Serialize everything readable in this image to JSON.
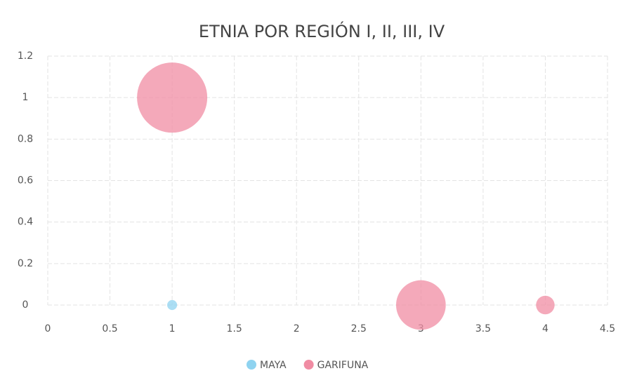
{
  "chart_data": {
    "type": "bubble",
    "title": "ETNIA POR REGIÓN I, II, III, IV",
    "series": [
      {
        "name": "MAYA",
        "color": "#8fd3f0",
        "x": [
          1
        ],
        "values": [
          0
        ],
        "sizes": [
          1
        ]
      },
      {
        "name": "GARIFUNA",
        "color": "#f08ca3",
        "x": [
          1,
          3,
          4
        ],
        "values": [
          1,
          0,
          0
        ],
        "sizes": [
          50,
          25,
          3.5
        ]
      }
    ],
    "xlim": [
      0,
      4.5
    ],
    "xticks": [
      0,
      0.5,
      1,
      1.5,
      2,
      2.5,
      3,
      3.5,
      4,
      4.5
    ],
    "ylim": [
      0,
      1.2
    ],
    "yticks": [
      0,
      0.2,
      0.4,
      0.6,
      0.8,
      1,
      1.2
    ],
    "grid": true,
    "legend": "bottom"
  }
}
